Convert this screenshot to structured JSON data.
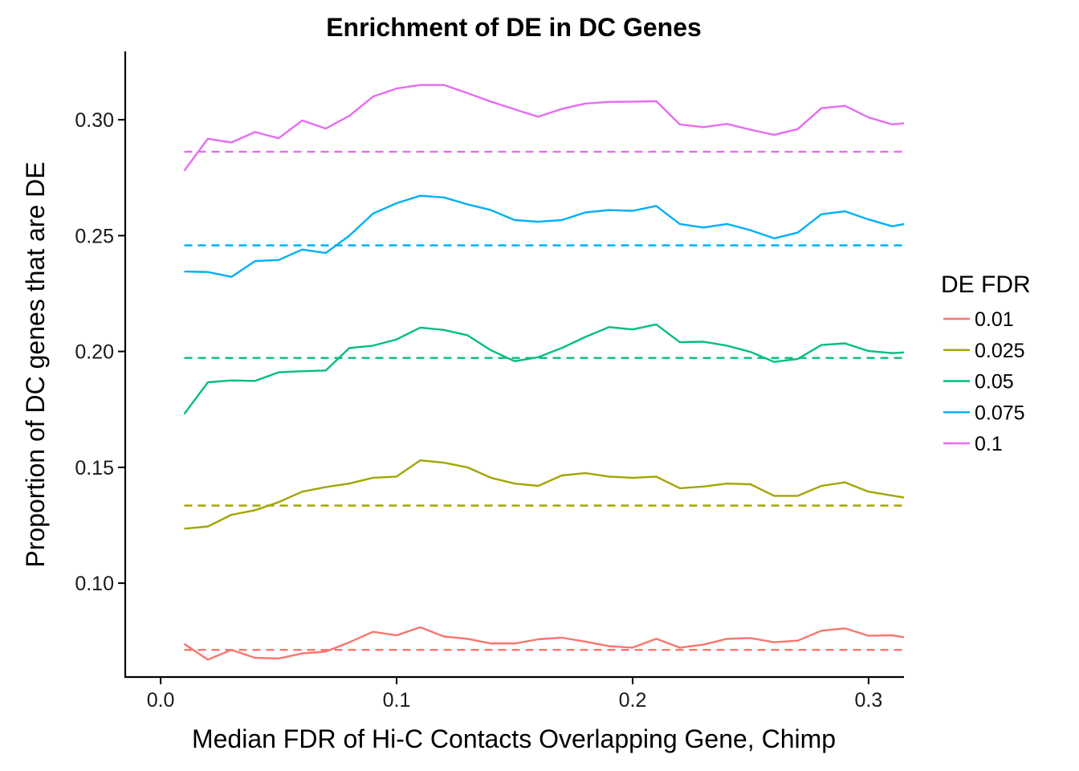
{
  "chart_data": {
    "type": "line",
    "title": "Enrichment of DE in DC Genes",
    "xlabel": "Median FDR of Hi-C Contacts Overlapping Gene, Chimp",
    "ylabel": "Proportion of DC genes that are DE",
    "xlim": [
      -0.015,
      0.315
    ],
    "ylim": [
      0.0595,
      0.3295
    ],
    "x_ticks": [
      0.0,
      0.1,
      0.2,
      0.3
    ],
    "x_tick_labels": [
      "0.0",
      "0.1",
      "0.2",
      "0.3"
    ],
    "y_ticks": [
      0.1,
      0.15,
      0.2,
      0.25,
      0.3
    ],
    "y_tick_labels": [
      "0.10",
      "0.15",
      "0.20",
      "0.25",
      "0.30"
    ],
    "grid": false,
    "legend": {
      "title": "DE FDR",
      "position": "right"
    },
    "x": [
      0.01,
      0.02,
      0.03,
      0.04,
      0.05,
      0.06,
      0.07,
      0.08,
      0.09,
      0.1,
      0.11,
      0.12,
      0.13,
      0.14,
      0.15,
      0.16,
      0.17,
      0.18,
      0.19,
      0.2,
      0.21,
      0.22,
      0.23,
      0.24,
      0.25,
      0.26,
      0.27,
      0.28,
      0.29,
      0.3,
      0.31,
      0.315
    ],
    "series": [
      {
        "name": "0.01",
        "color": "#F8766D",
        "baseline": 0.0712,
        "values": [
          0.0738,
          0.067,
          0.0712,
          0.0678,
          0.0675,
          0.0697,
          0.0705,
          0.0745,
          0.079,
          0.0775,
          0.081,
          0.077,
          0.076,
          0.074,
          0.074,
          0.0758,
          0.0765,
          0.0748,
          0.0728,
          0.0722,
          0.076,
          0.0722,
          0.0735,
          0.076,
          0.0763,
          0.0745,
          0.0752,
          0.0795,
          0.0805,
          0.0773,
          0.0775,
          0.0767
        ]
      },
      {
        "name": "0.025",
        "color": "#A3A500",
        "baseline": 0.1335,
        "values": [
          0.1235,
          0.1245,
          0.1295,
          0.1315,
          0.135,
          0.1395,
          0.1415,
          0.143,
          0.1455,
          0.146,
          0.153,
          0.152,
          0.15,
          0.1455,
          0.143,
          0.142,
          0.1465,
          0.1475,
          0.146,
          0.1455,
          0.146,
          0.141,
          0.1417,
          0.143,
          0.1427,
          0.1377,
          0.1377,
          0.142,
          0.1435,
          0.1395,
          0.1378,
          0.137
        ]
      },
      {
        "name": "0.05",
        "color": "#00BF7D",
        "baseline": 0.1972,
        "values": [
          0.173,
          0.1867,
          0.1875,
          0.1873,
          0.191,
          0.1915,
          0.1918,
          0.2015,
          0.2025,
          0.2052,
          0.2103,
          0.2093,
          0.207,
          0.2005,
          0.1958,
          0.1975,
          0.2015,
          0.2063,
          0.2105,
          0.2095,
          0.2117,
          0.204,
          0.2042,
          0.2025,
          0.1998,
          0.1955,
          0.1968,
          0.2028,
          0.2035,
          0.2002,
          0.1993,
          0.1996
        ]
      },
      {
        "name": "0.075",
        "color": "#00B0F6",
        "baseline": 0.2458,
        "values": [
          0.2345,
          0.2343,
          0.2322,
          0.239,
          0.2395,
          0.244,
          0.2425,
          0.25,
          0.2595,
          0.264,
          0.2672,
          0.2665,
          0.2635,
          0.261,
          0.2567,
          0.256,
          0.2567,
          0.26,
          0.261,
          0.2607,
          0.2628,
          0.255,
          0.2535,
          0.255,
          0.2523,
          0.2488,
          0.2513,
          0.2592,
          0.2605,
          0.257,
          0.254,
          0.255
        ]
      },
      {
        "name": "0.1",
        "color": "#E76BF3",
        "baseline": 0.2862,
        "values": [
          0.278,
          0.2918,
          0.2902,
          0.2947,
          0.292,
          0.2997,
          0.2962,
          0.3017,
          0.31,
          0.3135,
          0.315,
          0.315,
          0.3115,
          0.3078,
          0.3045,
          0.3013,
          0.3047,
          0.307,
          0.3077,
          0.3078,
          0.308,
          0.298,
          0.2968,
          0.2982,
          0.2957,
          0.2935,
          0.296,
          0.305,
          0.306,
          0.301,
          0.298,
          0.2985
        ]
      }
    ]
  }
}
